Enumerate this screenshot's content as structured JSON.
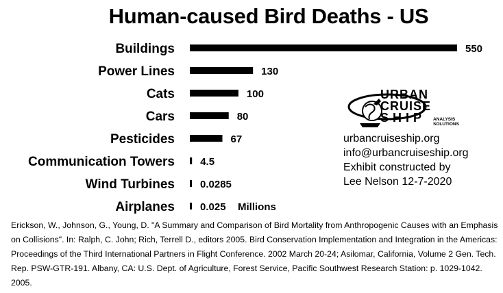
{
  "chart_data": {
    "type": "bar",
    "orientation": "horizontal",
    "title": "Human-caused Bird Deaths - US",
    "categories": [
      "Buildings",
      "Power Lines",
      "Cats",
      "Cars",
      "Pesticides",
      "Communication Towers",
      "Wind Turbines",
      "Airplanes"
    ],
    "values": [
      550,
      130,
      100,
      80,
      67,
      4.5,
      0.0285,
      0.025
    ],
    "value_labels": [
      "550",
      "130",
      "100",
      "80",
      "67",
      "4.5",
      "0.0285",
      "0.025"
    ],
    "units": "Millions",
    "xlim": [
      0,
      550
    ],
    "grid": false,
    "bar_color": "#000000"
  },
  "logo": {
    "line1": "URBAN",
    "line2": "CRUISE",
    "line3": "SHIP",
    "sub1": "ANALYSIS",
    "sub2": "SOLUTIONS"
  },
  "info": {
    "website": "urbancruiseship.org",
    "email": "info@urbancruiseship.org",
    "credit1": "Exhibit constructed by",
    "credit2": "Lee Nelson 12-7-2020"
  },
  "citation": "Erickson, W., Johnson, G., Young, D. \"A Summary and Comparison of Bird Mortality from Anthropogenic Causes with an Emphasis on Collisions\". In: Ralph, C. John; Rich, Terrell D., editors 2005. Bird Conservation Implementation and Integration in the Americas: Proceedings of the Third International Partners in Flight Conference. 2002 March 20-24; Asilomar, California, Volume 2 Gen. Tech. Rep. PSW-GTR-191. Albany, CA: U.S. Dept. of Agriculture, Forest Service, Pacific Southwest Research Station: p. 1029-1042. 2005."
}
